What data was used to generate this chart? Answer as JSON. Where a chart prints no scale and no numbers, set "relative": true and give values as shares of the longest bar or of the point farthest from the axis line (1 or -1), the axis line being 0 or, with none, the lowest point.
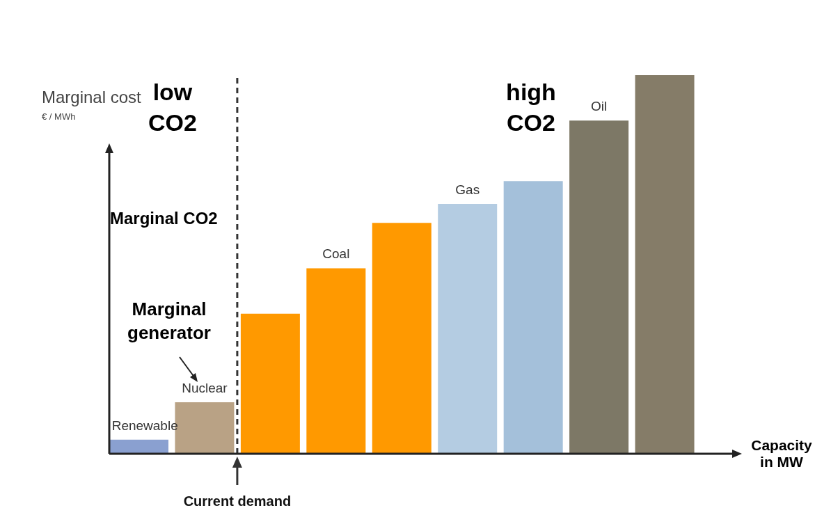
{
  "chart_data": {
    "type": "bar",
    "relative": true,
    "categories": [
      "Renewable",
      "Nuclear",
      null,
      "Coal",
      null,
      "Gas",
      null,
      "Oil",
      null
    ],
    "values": [
      0.037,
      0.136,
      0.37,
      0.49,
      0.61,
      0.66,
      0.72,
      0.88,
      1
    ],
    "colors": [
      "#8aa0d0",
      "#b9a285",
      "#ff9900",
      "#ff9900",
      "#ff9900",
      "#b4cce2",
      "#a4c0da",
      "#7d7866",
      "#857c68"
    ],
    "ylabel": "Marginal cost",
    "xlabel": "Capacity in MW",
    "annotations": [
      "€ / MWh",
      "low CO2",
      "high CO2",
      "Marginal CO2",
      "Marginal generator",
      "Current demand"
    ],
    "legend": false,
    "grid": false
  }
}
